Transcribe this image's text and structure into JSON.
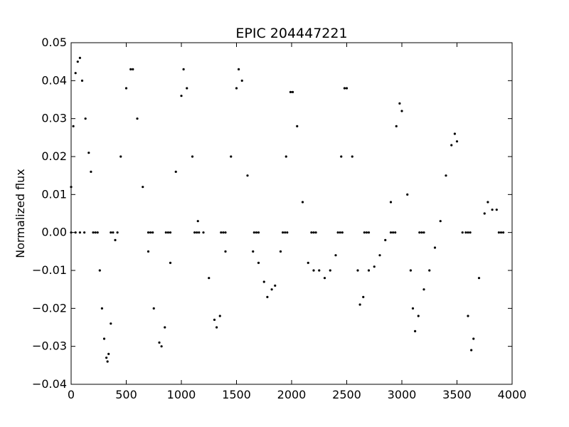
{
  "chart_data": {
    "type": "scatter",
    "title": "EPIC 204447221",
    "xlabel": "",
    "ylabel": "Normalized flux",
    "xlim": [
      0,
      4000
    ],
    "ylim": [
      -0.04,
      0.05
    ],
    "xticks": [
      0,
      500,
      1000,
      1500,
      2000,
      2500,
      3000,
      3500,
      4000
    ],
    "yticks": [
      -0.04,
      -0.03,
      -0.02,
      -0.01,
      0.0,
      0.01,
      0.02,
      0.03,
      0.04,
      0.05
    ],
    "xtick_labels": [
      "0",
      "500",
      "1000",
      "1500",
      "2000",
      "2500",
      "3000",
      "3500",
      "4000"
    ],
    "ytick_labels": [
      "−0.04",
      "−0.03",
      "−0.02",
      "−0.01",
      "0.00",
      "0.01",
      "0.02",
      "0.03",
      "0.04",
      "0.05"
    ],
    "grid": false,
    "marker_color": "#000000",
    "series": [
      {
        "x": [
          0,
          20,
          40,
          60,
          80,
          100,
          130,
          160,
          180,
          260,
          280,
          300,
          320,
          330,
          340,
          360,
          400,
          450,
          500,
          540,
          560,
          600,
          650,
          700,
          750,
          800,
          820,
          850,
          900,
          950,
          1000,
          1020,
          1050,
          1100,
          1150,
          1200,
          1250,
          1300,
          1320,
          1350,
          1400,
          1450,
          1500,
          1520,
          1550,
          1600,
          1650,
          1700,
          1750,
          1780,
          1820,
          1850,
          1900,
          1950,
          1990,
          2010,
          2050,
          2100,
          2150,
          2200,
          2250,
          2300,
          2350,
          2400,
          2450,
          2480,
          2500,
          2550,
          2600,
          2620,
          2650,
          2700,
          2750,
          2800,
          2850,
          2900,
          2950,
          2980,
          3000,
          3050,
          3080,
          3100,
          3120,
          3150,
          3200,
          3250,
          3300,
          3350,
          3400,
          3450,
          3480,
          3500,
          3550,
          3600,
          3630,
          3650,
          3700,
          3750,
          3780,
          3820,
          3860
        ],
        "y": [
          0.012,
          0.028,
          0.042,
          0.045,
          0.046,
          0.04,
          0.03,
          0.021,
          0.016,
          -0.01,
          -0.02,
          -0.028,
          -0.033,
          -0.034,
          -0.032,
          -0.024,
          -0.002,
          0.02,
          0.038,
          0.043,
          0.043,
          0.03,
          0.012,
          -0.005,
          -0.02,
          -0.029,
          -0.03,
          -0.025,
          -0.008,
          0.016,
          0.036,
          0.043,
          0.038,
          0.02,
          0.003,
          0.0,
          -0.012,
          -0.023,
          -0.025,
          -0.022,
          -0.005,
          0.02,
          0.038,
          0.043,
          0.04,
          0.015,
          -0.005,
          -0.008,
          -0.013,
          -0.017,
          -0.015,
          -0.014,
          -0.005,
          0.02,
          0.037,
          0.037,
          0.028,
          0.008,
          -0.008,
          -0.01,
          -0.01,
          -0.012,
          -0.01,
          -0.006,
          0.02,
          0.038,
          0.038,
          0.02,
          -0.01,
          -0.019,
          -0.017,
          -0.01,
          -0.009,
          -0.006,
          -0.002,
          0.008,
          0.028,
          0.034,
          0.032,
          0.01,
          -0.01,
          -0.02,
          -0.026,
          -0.022,
          -0.015,
          -0.01,
          -0.004,
          0.003,
          0.015,
          0.023,
          0.026,
          0.024,
          0.0,
          -0.022,
          -0.031,
          -0.028,
          -0.012,
          0.005,
          0.008,
          0.006,
          0.006
        ]
      },
      {
        "x": [
          0,
          40,
          80,
          120,
          200,
          220,
          240,
          360,
          380,
          420,
          700,
          720,
          740,
          860,
          880,
          900,
          1120,
          1140,
          1160,
          1360,
          1380,
          1400,
          1660,
          1680,
          1700,
          1920,
          1940,
          1960,
          2180,
          2200,
          2220,
          2420,
          2440,
          2460,
          2660,
          2680,
          2700,
          2900,
          2920,
          2940,
          3160,
          3180,
          3200,
          3580,
          3600,
          3620,
          3880,
          3900,
          3920
        ],
        "y": [
          0,
          0,
          0,
          0,
          0,
          0,
          0,
          0,
          0,
          0,
          0,
          0,
          0,
          0,
          0,
          0,
          0,
          0,
          0,
          0,
          0,
          0,
          0,
          0,
          0,
          0,
          0,
          0,
          0,
          0,
          0,
          0,
          0,
          0,
          0,
          0,
          0,
          0,
          0,
          0,
          0,
          0,
          0,
          0,
          0,
          0,
          0,
          0,
          0
        ]
      }
    ]
  }
}
